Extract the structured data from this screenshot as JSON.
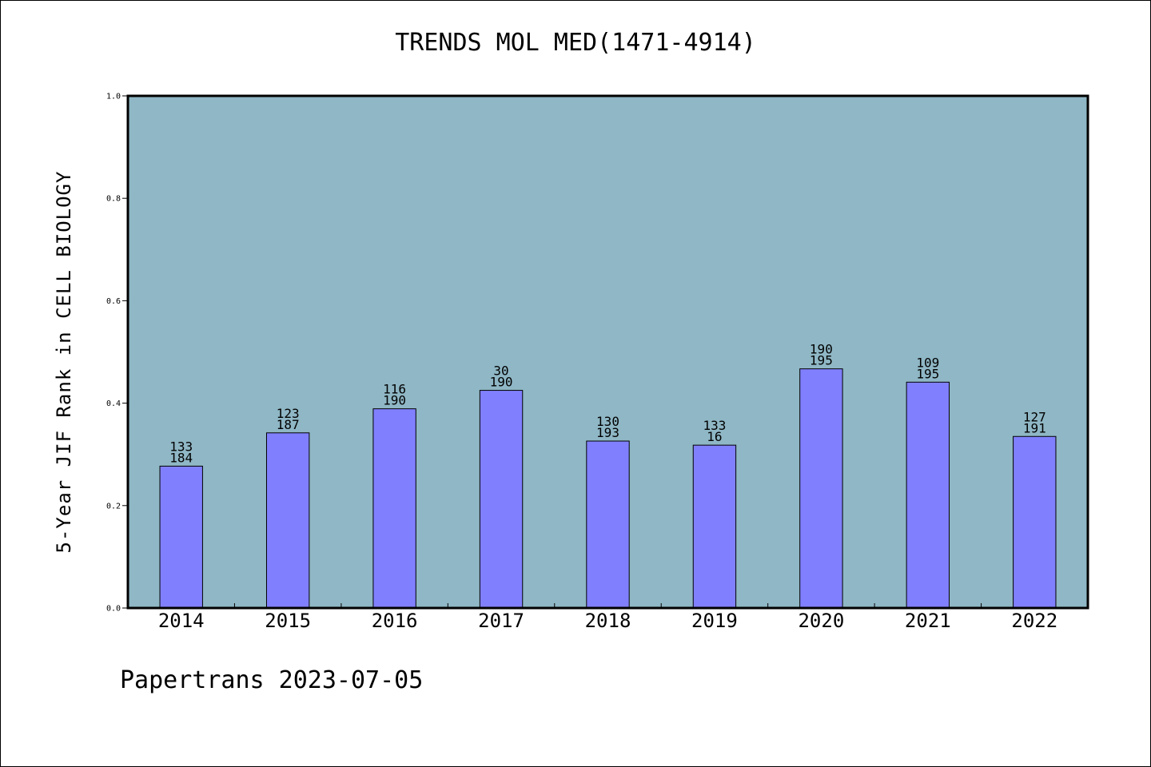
{
  "chart_data": {
    "type": "bar",
    "title": "TRENDS MOL MED(1471-4914)",
    "xlabel": "",
    "ylabel": "5-Year JIF Rank in CELL BIOLOGY",
    "categories": [
      "2014",
      "2015",
      "2016",
      "2017",
      "2018",
      "2019",
      "2020",
      "2021",
      "2022"
    ],
    "values": [
      0.277,
      0.342,
      0.389,
      0.425,
      0.326,
      0.318,
      0.467,
      0.441,
      0.335
    ],
    "bar_labels": [
      [
        "133",
        "184"
      ],
      [
        "123",
        "187"
      ],
      [
        "116",
        "190"
      ],
      [
        "30",
        "190"
      ],
      [
        "130",
        "193"
      ],
      [
        "133",
        "16"
      ],
      [
        "190",
        "195"
      ],
      [
        "109",
        "195"
      ],
      [
        "127",
        "191"
      ]
    ],
    "ylim": [
      0.0,
      1.0
    ],
    "yticks": [
      "0.0",
      "0.2",
      "0.4",
      "0.6",
      "0.8",
      "1.0"
    ],
    "grid": false,
    "colors": {
      "plot_background": "#8fb7c5",
      "bar_fill": "#8080ff",
      "bar_edge": "#000000"
    }
  },
  "footer": "Papertrans 2023-07-05"
}
